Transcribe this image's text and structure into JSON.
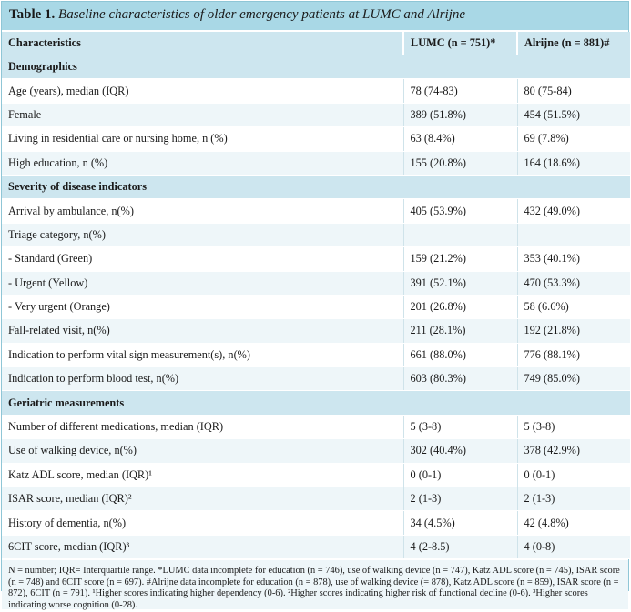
{
  "table": {
    "label": "Table 1.",
    "caption": "Baseline characteristics of older emergency patients at LUMC and Alrijne",
    "headers": [
      "Characteristics",
      "LUMC (n = 751)*",
      "Alrijne (n = 881)#"
    ],
    "rows": [
      {
        "type": "section",
        "label": "Demographics"
      },
      {
        "label": "Age (years), median (IQR)",
        "lumc": "78 (74-83)",
        "alrijne": "80 (75-84)"
      },
      {
        "label": "Female",
        "lumc": "389 (51.8%)",
        "alrijne": "454 (51.5%)"
      },
      {
        "label": "Living in residential care or nursing home, n (%)",
        "lumc": "63 (8.4%)",
        "alrijne": "69 (7.8%)"
      },
      {
        "label": "High education, n (%)",
        "lumc": "155 (20.8%)",
        "alrijne": "164 (18.6%)"
      },
      {
        "type": "section",
        "label": "Severity of disease indicators"
      },
      {
        "label": "Arrival by ambulance, n(%)",
        "lumc": "405 (53.9%)",
        "alrijne": "432 (49.0%)"
      },
      {
        "label": "Triage category, n(%)",
        "lumc": "",
        "alrijne": ""
      },
      {
        "label": "-  Standard (Green)",
        "lumc": "159 (21.2%)",
        "alrijne": "353 (40.1%)"
      },
      {
        "label": "-  Urgent (Yellow)",
        "lumc": "391 (52.1%)",
        "alrijne": "470 (53.3%)"
      },
      {
        "label": "-  Very urgent (Orange)",
        "lumc": "201 (26.8%)",
        "alrijne": "58 (6.6%)"
      },
      {
        "label": "Fall-related visit, n(%)",
        "lumc": "211 (28.1%)",
        "alrijne": "192 (21.8%)"
      },
      {
        "label": "Indication to perform vital sign measurement(s), n(%)",
        "lumc": "661 (88.0%)",
        "alrijne": "776 (88.1%)"
      },
      {
        "label": "Indication to perform blood test, n(%)",
        "lumc": "603 (80.3%)",
        "alrijne": "749 (85.0%)"
      },
      {
        "type": "section",
        "label": "Geriatric measurements"
      },
      {
        "label": "Number of different medications, median (IQR)",
        "lumc": "5 (3-8)",
        "alrijne": "5 (3-8)"
      },
      {
        "label": "Use of walking device, n(%)",
        "lumc": "302 (40.4%)",
        "alrijne": "378 (42.9%)"
      },
      {
        "label": "Katz ADL score, median (IQR)¹",
        "lumc": "0 (0-1)",
        "alrijne": "0 (0-1)"
      },
      {
        "label": "ISAR score, median (IQR)²",
        "lumc": "2 (1-3)",
        "alrijne": "2 (1-3)"
      },
      {
        "label": "History of dementia, n(%)",
        "lumc": "34 (4.5%)",
        "alrijne": "42 (4.8%)"
      },
      {
        "label": "6CIT score, median (IQR)³",
        "lumc": "4 (2-8.5)",
        "alrijne": "4 (0-8)"
      }
    ],
    "footnote": "N = number; IQR= Interquartile range. *LUMC data incomplete for education (n = 746), use of walking device (n = 747), Katz ADL score (n = 745), ISAR score (n = 748) and 6CIT score (n = 697). #Alrijne data incomplete for education (n = 878), use of walking device (= 878), Katz ADL score (n = 859), ISAR score (n = 872), 6CIT (n = 791). ¹Higher scores indicating higher dependency (0-6). ²Higher scores indicating higher risk of functional decline (0-6). ³Higher scores indicating worse cognition (0-28)."
  }
}
